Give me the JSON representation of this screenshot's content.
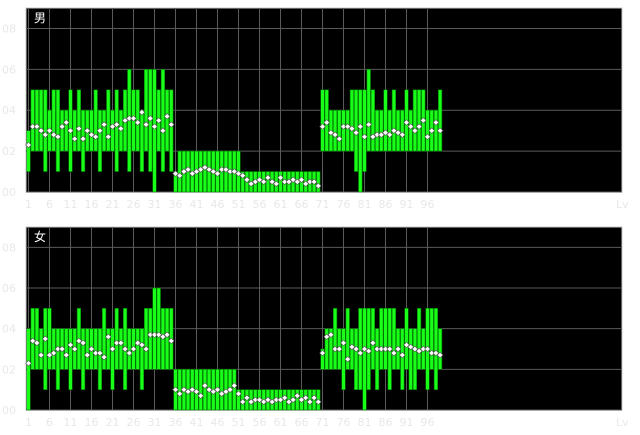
{
  "colors": {
    "background": "#000000",
    "frame": "#c8c8c8",
    "grid": "#5a5a5a",
    "bar_fill": "#19ff19",
    "bar_stroke": "#007700",
    "marker_fill": "#ffffff",
    "marker_stroke": "#555555",
    "text": "#e8e8e8"
  },
  "chart_data": [
    {
      "type": "range_bar",
      "title": "男",
      "xlabel": "Lv",
      "x_ticks": [
        1,
        6,
        11,
        16,
        21,
        26,
        31,
        36,
        41,
        46,
        51,
        56,
        61,
        66,
        71,
        76,
        81,
        86,
        91,
        96
      ],
      "xlim": [
        1,
        99
      ],
      "y_ticks": [
        "00",
        "02",
        "04",
        "06",
        "08"
      ],
      "ylim": [
        0,
        9
      ],
      "grid": true,
      "x": [
        1,
        2,
        3,
        4,
        5,
        6,
        7,
        8,
        9,
        10,
        11,
        12,
        13,
        14,
        15,
        16,
        17,
        18,
        19,
        20,
        21,
        22,
        23,
        24,
        25,
        26,
        27,
        28,
        29,
        30,
        31,
        32,
        33,
        34,
        35,
        36,
        37,
        38,
        39,
        40,
        41,
        42,
        43,
        44,
        45,
        46,
        47,
        48,
        49,
        50,
        51,
        52,
        53,
        54,
        55,
        56,
        57,
        58,
        59,
        60,
        61,
        62,
        63,
        64,
        65,
        66,
        67,
        68,
        69,
        70,
        71,
        72,
        73,
        74,
        75,
        76,
        77,
        78,
        79,
        80,
        81,
        82,
        83,
        84,
        85,
        86,
        87,
        88,
        89,
        90,
        91,
        92,
        93,
        94,
        95,
        96,
        97,
        98,
        99
      ],
      "min": [
        1,
        2,
        2,
        2,
        1,
        2,
        2,
        1,
        2,
        2,
        1,
        2,
        2,
        1,
        2,
        2,
        2,
        1,
        2,
        2,
        2,
        1,
        2,
        2,
        1,
        2,
        2,
        1,
        2,
        1,
        0,
        2,
        1,
        2,
        1,
        0,
        0,
        0,
        0,
        0,
        0,
        0,
        0,
        0,
        0,
        0,
        0,
        0,
        0,
        0,
        0,
        0,
        0,
        0,
        0,
        0,
        0,
        0,
        0,
        0,
        0,
        0,
        0,
        0,
        0,
        0,
        0,
        0,
        0,
        0,
        2,
        2,
        2,
        2,
        2,
        2,
        2,
        2,
        1,
        0,
        1,
        2,
        2,
        2,
        2,
        2,
        2,
        2,
        2,
        2,
        2,
        2,
        2,
        2,
        2,
        2,
        2,
        2,
        2
      ],
      "max": [
        3,
        5,
        5,
        5,
        5,
        4,
        5,
        5,
        4,
        4,
        5,
        4,
        5,
        4,
        4,
        4,
        5,
        4,
        4,
        5,
        4,
        5,
        4,
        5,
        6,
        5,
        5,
        4,
        6,
        6,
        6,
        5,
        6,
        5,
        5,
        1,
        2,
        2,
        2,
        2,
        2,
        2,
        2,
        2,
        2,
        2,
        2,
        2,
        2,
        2,
        2,
        1,
        1,
        1,
        1,
        1,
        1,
        1,
        1,
        1,
        1,
        1,
        1,
        1,
        1,
        1,
        1,
        1,
        1,
        1,
        5,
        5,
        4,
        4,
        4,
        4,
        4,
        5,
        5,
        5,
        5,
        6,
        5,
        4,
        4,
        5,
        4,
        5,
        4,
        4,
        5,
        4,
        5,
        5,
        5,
        4,
        4,
        4,
        5
      ],
      "avg": [
        2.3,
        3.2,
        3.2,
        3.0,
        2.8,
        3.0,
        2.8,
        2.7,
        3.2,
        3.4,
        3.0,
        2.6,
        3.1,
        2.6,
        3.0,
        2.8,
        2.7,
        3.0,
        3.3,
        2.7,
        3.2,
        3.3,
        3.1,
        3.5,
        3.6,
        3.6,
        3.4,
        3.9,
        3.3,
        3.6,
        3.2,
        3.5,
        3.0,
        3.7,
        3.3,
        0.9,
        0.8,
        1.0,
        1.1,
        0.9,
        1.0,
        1.1,
        1.2,
        1.1,
        1.0,
        0.9,
        1.1,
        1.1,
        1.0,
        1.0,
        0.9,
        0.8,
        0.6,
        0.4,
        0.5,
        0.6,
        0.5,
        0.7,
        0.5,
        0.4,
        0.7,
        0.5,
        0.5,
        0.6,
        0.5,
        0.6,
        0.4,
        0.5,
        0.5,
        0.3,
        3.2,
        3.4,
        2.9,
        2.8,
        2.6,
        3.2,
        3.2,
        3.1,
        2.9,
        3.2,
        2.7,
        3.3,
        2.7,
        2.8,
        2.8,
        2.9,
        2.8,
        3.0,
        2.9,
        2.8,
        3.4,
        3.2,
        3.0,
        3.2,
        3.5,
        2.7,
        3.0,
        3.4,
        3.0
      ]
    },
    {
      "type": "range_bar",
      "title": "女",
      "xlabel": "Lv",
      "x_ticks": [
        1,
        6,
        11,
        16,
        21,
        26,
        31,
        36,
        41,
        46,
        51,
        56,
        61,
        66,
        71,
        76,
        81,
        86,
        91,
        96
      ],
      "xlim": [
        1,
        99
      ],
      "y_ticks": [
        "00",
        "02",
        "04",
        "06",
        "08"
      ],
      "ylim": [
        0,
        9
      ],
      "grid": true,
      "x": [
        1,
        2,
        3,
        4,
        5,
        6,
        7,
        8,
        9,
        10,
        11,
        12,
        13,
        14,
        15,
        16,
        17,
        18,
        19,
        20,
        21,
        22,
        23,
        24,
        25,
        26,
        27,
        28,
        29,
        30,
        31,
        32,
        33,
        34,
        35,
        36,
        37,
        38,
        39,
        40,
        41,
        42,
        43,
        44,
        45,
        46,
        47,
        48,
        49,
        50,
        51,
        52,
        53,
        54,
        55,
        56,
        57,
        58,
        59,
        60,
        61,
        62,
        63,
        64,
        65,
        66,
        67,
        68,
        69,
        70,
        71,
        72,
        73,
        74,
        75,
        76,
        77,
        78,
        79,
        80,
        81,
        82,
        83,
        84,
        85,
        86,
        87,
        88,
        89,
        90,
        91,
        92,
        93,
        94,
        95,
        96,
        97,
        98,
        99
      ],
      "min": [
        0,
        2,
        2,
        2,
        1,
        2,
        2,
        1,
        2,
        2,
        1,
        2,
        2,
        1,
        2,
        2,
        2,
        1,
        2,
        2,
        1,
        2,
        2,
        1,
        2,
        2,
        2,
        1,
        2,
        2,
        2,
        2,
        2,
        2,
        2,
        0,
        0,
        0,
        0,
        0,
        0,
        0,
        0,
        0,
        0,
        0,
        0,
        0,
        0,
        0,
        0,
        0,
        0,
        0,
        0,
        0,
        0,
        0,
        0,
        0,
        0,
        0,
        0,
        0,
        0,
        0,
        0,
        0,
        0,
        0,
        2,
        2,
        2,
        2,
        2,
        1,
        2,
        2,
        1,
        1,
        0,
        1,
        2,
        1,
        2,
        2,
        1,
        2,
        2,
        1,
        2,
        1,
        1,
        2,
        2,
        1,
        2,
        1,
        2
      ],
      "max": [
        4,
        5,
        5,
        4,
        5,
        5,
        4,
        4,
        4,
        4,
        4,
        4,
        5,
        4,
        4,
        4,
        4,
        4,
        5,
        4,
        4,
        5,
        4,
        5,
        4,
        4,
        4,
        4,
        5,
        5,
        6,
        6,
        5,
        5,
        5,
        2,
        2,
        2,
        2,
        2,
        2,
        2,
        2,
        2,
        2,
        2,
        2,
        2,
        2,
        2,
        1,
        1,
        1,
        1,
        1,
        1,
        1,
        1,
        1,
        1,
        1,
        1,
        1,
        1,
        1,
        1,
        1,
        1,
        1,
        1,
        3,
        4,
        4,
        5,
        4,
        4,
        5,
        4,
        4,
        5,
        5,
        5,
        5,
        4,
        5,
        5,
        5,
        5,
        4,
        4,
        5,
        4,
        4,
        5,
        4,
        5,
        5,
        5,
        4
      ],
      "avg": [
        2.3,
        3.4,
        3.3,
        2.7,
        3.5,
        2.7,
        2.8,
        3.0,
        3.0,
        2.7,
        3.2,
        3.0,
        3.4,
        3.3,
        2.7,
        3.0,
        2.8,
        2.8,
        2.6,
        3.6,
        3.0,
        3.3,
        3.3,
        3.0,
        2.8,
        3.0,
        3.3,
        3.2,
        3.0,
        3.7,
        3.7,
        3.7,
        3.6,
        3.7,
        3.4,
        1.0,
        0.8,
        1.0,
        0.9,
        1.0,
        0.9,
        0.7,
        1.2,
        1.0,
        0.9,
        1.0,
        0.8,
        0.9,
        1.0,
        1.2,
        0.8,
        0.4,
        0.6,
        0.4,
        0.5,
        0.5,
        0.4,
        0.5,
        0.4,
        0.5,
        0.5,
        0.6,
        0.4,
        0.5,
        0.7,
        0.5,
        0.6,
        0.4,
        0.6,
        0.4,
        2.8,
        3.6,
        3.7,
        3.0,
        3.0,
        3.3,
        2.5,
        3.1,
        3.0,
        2.8,
        3.0,
        2.9,
        3.3,
        3.0,
        3.0,
        3.0,
        3.0,
        2.8,
        3.0,
        2.7,
        3.2,
        3.1,
        3.0,
        2.9,
        3.0,
        3.0,
        2.8,
        2.8,
        2.7
      ]
    }
  ]
}
